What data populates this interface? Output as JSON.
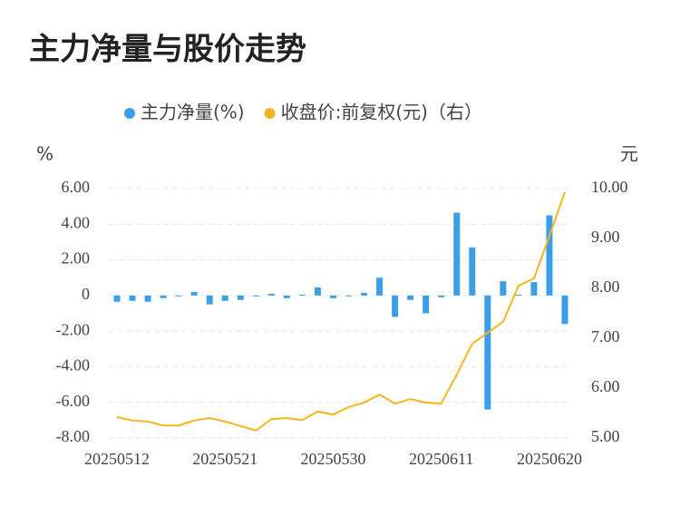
{
  "chart_data": {
    "type": "bar_line",
    "title": "主力净量与股价走势",
    "y_label": "%",
    "y2_label": "元",
    "categories": [
      "20250512",
      null,
      null,
      null,
      null,
      null,
      null,
      "20250521",
      null,
      null,
      null,
      null,
      null,
      null,
      "20250530",
      null,
      null,
      null,
      null,
      null,
      null,
      "20250611",
      null,
      null,
      null,
      null,
      null,
      null,
      "20250620",
      null
    ],
    "series": [
      {
        "name": "主力净量(%)",
        "color": "#3a9fe8",
        "kind": "bar",
        "values": [
          -0.35,
          -0.3,
          -0.35,
          -0.15,
          -0.05,
          0.2,
          -0.5,
          -0.3,
          -0.25,
          -0.05,
          0.1,
          -0.15,
          0.05,
          0.45,
          -0.15,
          -0.05,
          0.15,
          1.0,
          -1.2,
          -0.25,
          -1.0,
          -0.1,
          4.65,
          2.7,
          -6.4,
          0.8,
          0.05,
          0.75,
          4.5,
          -1.6
        ]
      },
      {
        "name": "收盘价:前复权(元)（右）",
        "color": "#f4b51f",
        "kind": "line",
        "axis": "y2",
        "values": [
          5.42,
          5.35,
          5.33,
          5.25,
          5.25,
          5.35,
          5.4,
          5.33,
          5.24,
          5.15,
          5.38,
          5.4,
          5.36,
          5.53,
          5.47,
          5.62,
          5.71,
          5.87,
          5.69,
          5.78,
          5.71,
          5.69,
          6.27,
          6.89,
          7.11,
          7.33,
          8.05,
          8.2,
          9.05,
          9.93
        ]
      }
    ],
    "ylim": [
      -8,
      6
    ],
    "yticks": [
      {
        "value": 6,
        "label": "6.00"
      },
      {
        "value": 4,
        "label": "4.00"
      },
      {
        "value": 2,
        "label": "2.00"
      },
      0,
      {
        "value": -2,
        "label": "-2.00"
      },
      {
        "value": -4,
        "label": "-4.00"
      },
      {
        "value": -6,
        "label": "-6.00"
      },
      {
        "value": -8,
        "label": "-8.00"
      }
    ],
    "y2lim": [
      5,
      10
    ],
    "y2ticks": [
      {
        "value": 10,
        "label": "10.00"
      },
      {
        "value": 9,
        "label": "9.00"
      },
      {
        "value": 8,
        "label": "8.00"
      },
      {
        "value": 7,
        "label": "7.00"
      },
      {
        "value": 6,
        "label": "6.00"
      },
      {
        "value": 5,
        "label": "5.00"
      }
    ],
    "grid": true
  }
}
